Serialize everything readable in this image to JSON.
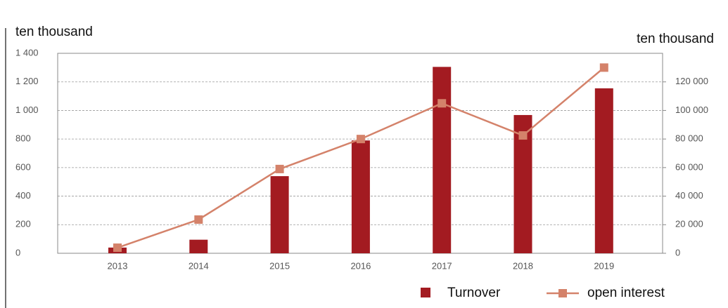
{
  "chart_data": {
    "type": "bar-line",
    "y_axis_label": "ten thousand",
    "y2_axis_label": "ten thousand",
    "categories": [
      "2013",
      "2014",
      "2015",
      "2016",
      "2017",
      "2018",
      "2019"
    ],
    "series": [
      {
        "name": "Turnover",
        "color": "#a31b21",
        "type": "bar",
        "values": [
          40,
          95,
          540,
          790,
          1305,
          968,
          1155
        ]
      },
      {
        "name": "open interest",
        "color": "#d4826a",
        "type": "line",
        "axis": "y2",
        "values": [
          3900,
          23600,
          59000,
          80000,
          105000,
          82500,
          130000
        ]
      }
    ],
    "ylim": [
      0,
      1400
    ],
    "yticks": [
      0,
      200,
      400,
      600,
      800,
      {
        "value": 1000,
        "label": "1 000"
      },
      {
        "value": 1200,
        "label": "1 200"
      },
      {
        "value": 1400,
        "label": "1 400"
      }
    ],
    "y2lim": [
      0,
      140000
    ],
    "y2ticks": [
      0,
      {
        "value": 20000,
        "label": "20 000"
      },
      {
        "value": 40000,
        "label": "40 000"
      },
      {
        "value": 60000,
        "label": "60 000"
      },
      {
        "value": 80000,
        "label": "80 000"
      },
      {
        "value": 100000,
        "label": "100 000"
      },
      {
        "value": 120000,
        "label": "120 000"
      }
    ],
    "grid": true
  }
}
